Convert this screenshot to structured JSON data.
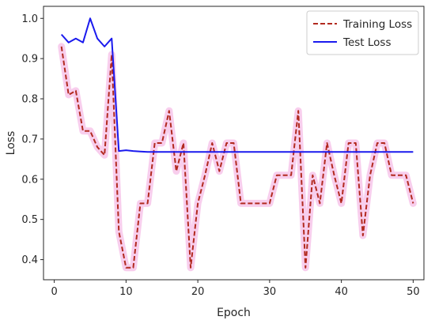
{
  "chart_data": {
    "type": "line",
    "xlabel": "Epoch",
    "ylabel": "Loss",
    "xlim": [
      -1.5,
      51.5
    ],
    "ylim": [
      0.35,
      1.03
    ],
    "xticks": [
      0,
      10,
      20,
      30,
      40,
      50
    ],
    "yticks": [
      0.4,
      0.5,
      0.6,
      0.7,
      0.8,
      0.9,
      1.0
    ],
    "xtick_labels": [
      "0",
      "10",
      "20",
      "30",
      "40",
      "50"
    ],
    "ytick_labels": [
      "0.4",
      "0.5",
      "0.6",
      "0.7",
      "0.8",
      "0.9",
      "1.0"
    ],
    "grid": false,
    "legend_position": "top-right",
    "series": [
      {
        "name": "Training Loss",
        "color": "#b22a1f",
        "halo_color": "#f7c6ea",
        "linestyle": "dashed",
        "x": [
          1,
          2,
          3,
          4,
          5,
          6,
          7,
          8,
          9,
          10,
          11,
          12,
          13,
          14,
          15,
          16,
          17,
          18,
          19,
          20,
          21,
          22,
          23,
          24,
          25,
          26,
          27,
          28,
          29,
          30,
          31,
          32,
          33,
          34,
          35,
          36,
          37,
          38,
          39,
          40,
          41,
          42,
          43,
          44,
          45,
          46,
          47,
          48,
          49,
          50
        ],
        "values": [
          0.93,
          0.81,
          0.82,
          0.72,
          0.72,
          0.68,
          0.66,
          0.91,
          0.47,
          0.38,
          0.38,
          0.54,
          0.54,
          0.69,
          0.69,
          0.77,
          0.62,
          0.69,
          0.38,
          0.54,
          0.61,
          0.69,
          0.62,
          0.69,
          0.69,
          0.54,
          0.54,
          0.54,
          0.54,
          0.54,
          0.61,
          0.61,
          0.61,
          0.77,
          0.38,
          0.61,
          0.54,
          0.69,
          0.61,
          0.54,
          0.69,
          0.69,
          0.46,
          0.61,
          0.69,
          0.69,
          0.61,
          0.61,
          0.61,
          0.54
        ]
      },
      {
        "name": "Test Loss",
        "color": "#1a1aee",
        "linestyle": "solid",
        "x": [
          1,
          2,
          3,
          4,
          5,
          6,
          7,
          8,
          9,
          10,
          11,
          12,
          13,
          14,
          15,
          16,
          17,
          18,
          19,
          20,
          21,
          22,
          23,
          24,
          25,
          26,
          27,
          28,
          29,
          30,
          31,
          32,
          33,
          34,
          35,
          36,
          37,
          38,
          39,
          40,
          41,
          42,
          43,
          44,
          45,
          46,
          47,
          48,
          49,
          50
        ],
        "values": [
          0.96,
          0.94,
          0.95,
          0.94,
          1.0,
          0.95,
          0.93,
          0.95,
          0.67,
          0.672,
          0.67,
          0.669,
          0.668,
          0.668,
          0.668,
          0.668,
          0.668,
          0.668,
          0.668,
          0.668,
          0.668,
          0.668,
          0.668,
          0.668,
          0.668,
          0.668,
          0.668,
          0.668,
          0.668,
          0.668,
          0.668,
          0.668,
          0.668,
          0.668,
          0.668,
          0.668,
          0.668,
          0.668,
          0.668,
          0.668,
          0.668,
          0.668,
          0.668,
          0.668,
          0.668,
          0.668,
          0.668,
          0.668,
          0.668,
          0.668
        ]
      }
    ]
  }
}
